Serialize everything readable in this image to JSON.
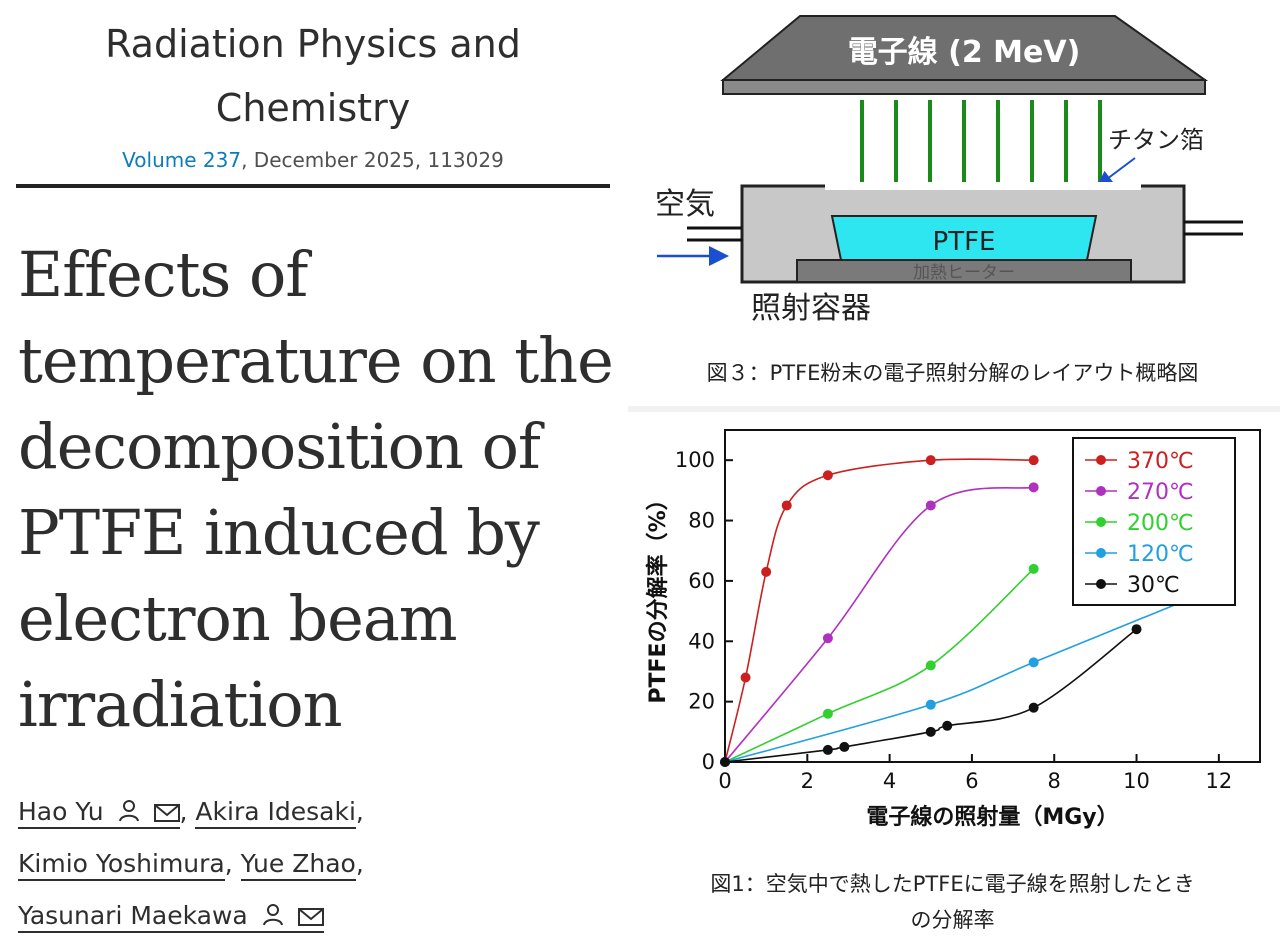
{
  "journal": {
    "name_line1": "Radiation Physics and",
    "name_line2": "Chemistry",
    "volume_link": "Volume 237",
    "volume_rest": ", December 2025, 113029"
  },
  "article": {
    "title_lines": [
      "Effects of",
      "temperature on the",
      "decomposition of",
      "PTFE induced by",
      "electron beam",
      "irradiation"
    ]
  },
  "authors": [
    {
      "name": "Hao Yu",
      "icons": [
        "person-icon",
        "mail-icon"
      ],
      "suffix": ","
    },
    {
      "name": "Akira Idesaki",
      "icons": [],
      "suffix": ","
    },
    {
      "name": "Kimio Yoshimura",
      "icons": [],
      "suffix": ","
    },
    {
      "name": "Yue Zhao",
      "icons": [],
      "suffix": ","
    },
    {
      "name": "Yasunari Maekawa",
      "icons": [
        "person-icon",
        "mail-icon"
      ],
      "suffix": ""
    }
  ],
  "figure3": {
    "beam_label": "電子線 (2 MeV)",
    "foil_label": "チタン箔",
    "air_label": "空気",
    "sample_label": "PTFE",
    "heater_label": "加熱ヒーター",
    "vessel_label": "照射容器",
    "caption": "図３：PTFE粉末の電子照射分解のレイアウト概略図"
  },
  "figure1": {
    "caption_line1": "図1：空気中で熱したPTFEに電子線を照射したとき",
    "caption_line2": "の分解率"
  },
  "chart_data": {
    "type": "line",
    "xlabel": "電子線の照射量（MGy）",
    "ylabel": "PTFEの分解率（%）",
    "xlim": [
      0,
      13
    ],
    "ylim": [
      0,
      110
    ],
    "xticks": [
      0,
      2,
      4,
      6,
      8,
      10,
      12
    ],
    "yticks": [
      0,
      20,
      40,
      60,
      80,
      100
    ],
    "legend_position": "top-right",
    "series": [
      {
        "name": "370℃",
        "color": "#cc2020",
        "x": [
          0,
          0.5,
          1.0,
          1.5,
          2.5,
          5.0,
          7.5
        ],
        "y": [
          0,
          28,
          63,
          85,
          95,
          100,
          100
        ]
      },
      {
        "name": "270℃",
        "color": "#b030c0",
        "x": [
          0,
          2.5,
          5.0,
          7.5
        ],
        "y": [
          0,
          41,
          85,
          91
        ]
      },
      {
        "name": "200℃",
        "color": "#30d030",
        "x": [
          0,
          2.5,
          5.0,
          7.5
        ],
        "y": [
          0,
          16,
          32,
          64
        ]
      },
      {
        "name": "120℃",
        "color": "#20a0e0",
        "x": [
          0,
          5.0,
          7.5,
          12.0
        ],
        "y": [
          0,
          19,
          33,
          58
        ],
        "marker_x": [
          0,
          5.0,
          7.5
        ],
        "marker_y": [
          0,
          19,
          33
        ]
      },
      {
        "name": "30℃",
        "color": "#111111",
        "x": [
          0,
          2.5,
          2.9,
          5.0,
          5.4,
          7.5,
          10.0
        ],
        "y": [
          0,
          4,
          5,
          10,
          12,
          18,
          44
        ]
      }
    ]
  }
}
